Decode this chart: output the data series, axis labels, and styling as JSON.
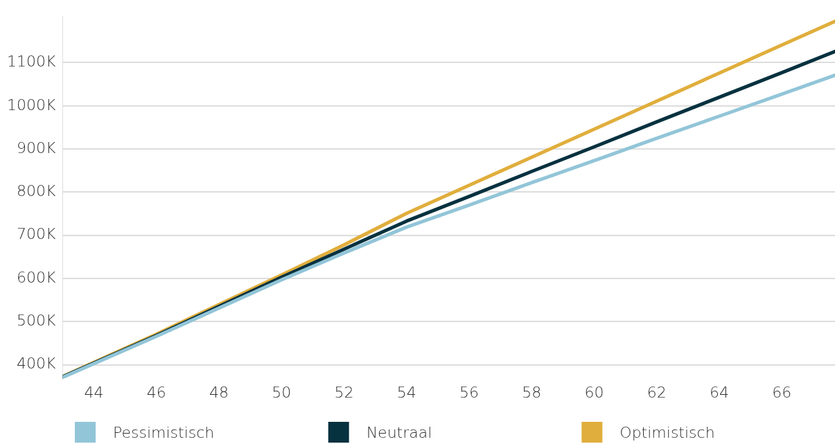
{
  "chart_data": {
    "type": "line",
    "x": [
      43,
      46,
      50,
      52,
      54,
      56,
      58,
      60,
      62,
      64,
      66,
      67.7
    ],
    "series": [
      {
        "name": "Pessimistisch",
        "color": "#92c5d8",
        "values": [
          371,
          466,
          597,
          659,
          719,
          770,
          822,
          873,
          925,
          976,
          1027,
          1071
        ]
      },
      {
        "name": "Neutraal",
        "color": "#06313f",
        "values": [
          372,
          468,
          603,
          668,
          733,
          790,
          848,
          905,
          963,
          1020,
          1077,
          1126
        ]
      },
      {
        "name": "Optimistisch",
        "color": "#e0ae3c",
        "values": [
          373,
          471,
          608,
          678,
          751,
          816,
          881,
          946,
          1011,
          1076,
          1141,
          1196
        ]
      }
    ],
    "xlim": [
      43,
      67.7
    ],
    "xticks": [
      44,
      46,
      48,
      50,
      52,
      54,
      56,
      58,
      60,
      62,
      64,
      66
    ],
    "ylim": [
      368,
      1208
    ],
    "yticks": [
      {
        "value": 400,
        "label": "400K"
      },
      {
        "value": 500,
        "label": "500K"
      },
      {
        "value": 600,
        "label": "600K"
      },
      {
        "value": 700,
        "label": "700K"
      },
      {
        "value": 800,
        "label": "800K"
      },
      {
        "value": 900,
        "label": "900K"
      },
      {
        "value": 1000,
        "label": "1000K"
      },
      {
        "value": 1100,
        "label": "1100K"
      }
    ],
    "grid": "y",
    "legend": "bottom",
    "marker": "none",
    "line_style": "solid"
  }
}
